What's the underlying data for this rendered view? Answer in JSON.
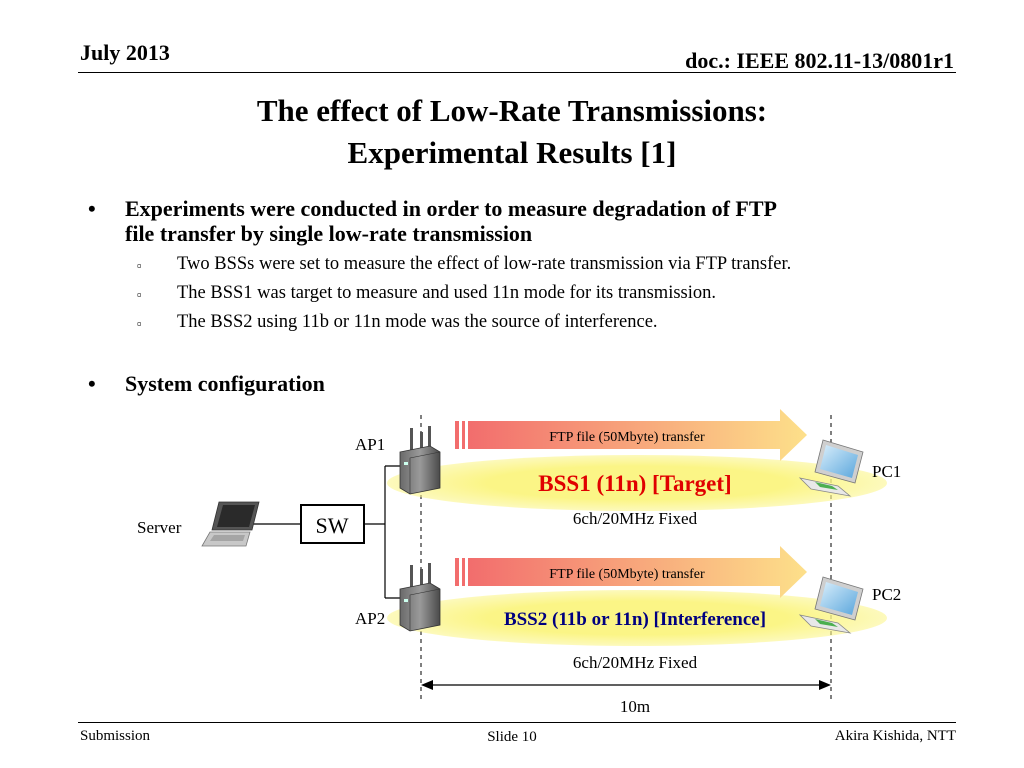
{
  "header": {
    "date": "July 2013",
    "doc": "doc.: IEEE 802.11-13/0801r1"
  },
  "title": {
    "line1": "The effect of Low-Rate Transmissions:",
    "line2": "Experimental Results [1]"
  },
  "bullets": [
    {
      "text_line1": "Experiments were conducted in order to measure degradation of FTP",
      "text_line2": "file transfer by single low-rate transmission",
      "subitems": [
        "Two BSSs were set to measure the effect of low-rate transmission via FTP transfer.",
        "The BSS1 was target to measure and used 11n mode for its transmission.",
        "The BSS2 using 11b or 11n mode was the source of interference."
      ]
    },
    {
      "text_line1": "System configuration"
    }
  ],
  "diagram": {
    "server_label": "Server",
    "switch_label": "SW",
    "ap1_label": "AP1",
    "ap2_label": "AP2",
    "pc1_label": "PC1",
    "pc2_label": "PC2",
    "ftp1_label": "FTP file (50Mbyte) transfer",
    "ftp2_label": "FTP file (50Mbyte) transfer",
    "bss1_label": "BSS1 (11n) [Target]",
    "bss2_label": "BSS2 (11b or 11n) [Interference]",
    "channel1_label": "6ch/20MHz Fixed",
    "channel2_label": "6ch/20MHz Fixed",
    "distance_label": "10m",
    "colors": {
      "bss1_text": "#e00000",
      "bss2_text": "#000080",
      "ellipse": "#fbf586",
      "arrow_start": "#f26d6d",
      "arrow_end": "#fde08a"
    }
  },
  "footer": {
    "left": "Submission",
    "center": "Slide 10",
    "right": "Akira Kishida, NTT"
  }
}
